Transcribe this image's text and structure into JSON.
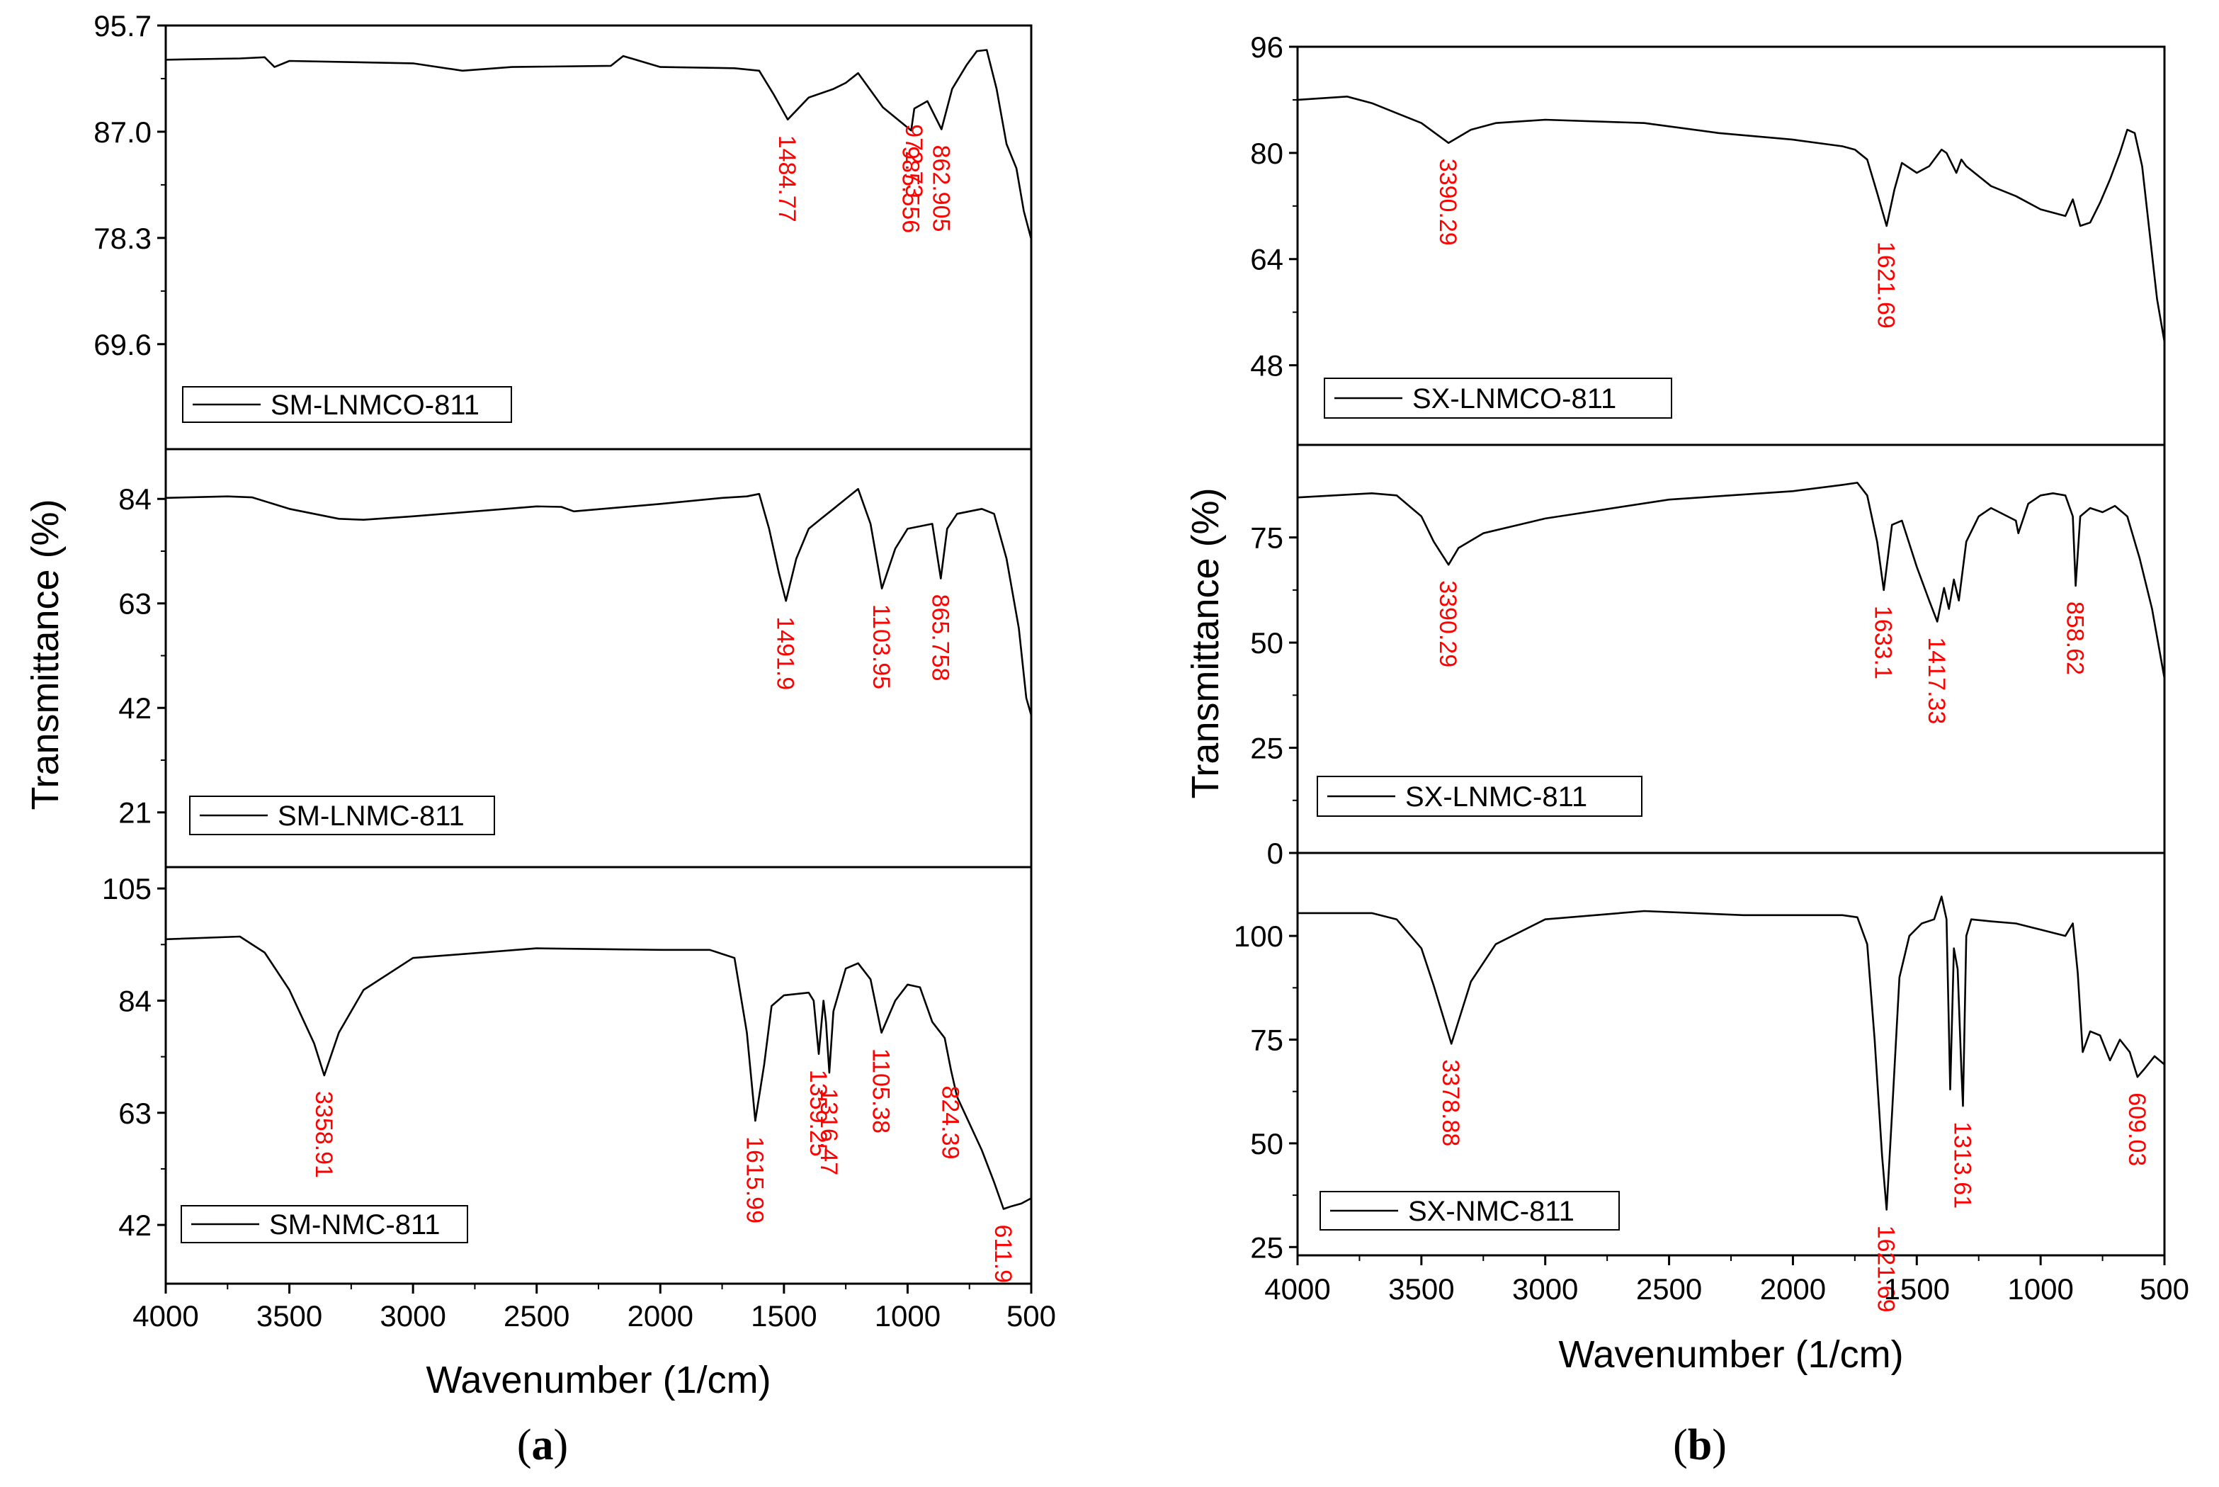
{
  "colors": {
    "line": "#000000",
    "annotation": "#ff0000",
    "background": "#ffffff"
  },
  "chart_data": [
    {
      "type": "line",
      "caption": {
        "open": "(",
        "letter": "a",
        "close": ")"
      },
      "xlabel": "Wavenumber (1/cm)",
      "ylabel": "Transmittance (%)",
      "xlim": [
        4000,
        500
      ],
      "x_ticks": [
        4000,
        3500,
        3000,
        2500,
        2000,
        1500,
        1000,
        500
      ],
      "x_tick_labels": [
        "4000",
        "3500",
        "3000",
        "2500",
        "2000",
        "1500",
        "1000",
        "500"
      ],
      "panels": [
        {
          "legend": "SM-LNMCO-811",
          "ylim": [
            61.0,
            95.7
          ],
          "y_ticks": [
            95.7,
            87.0,
            78.3,
            69.6
          ],
          "y_tick_labels": [
            "95.7",
            "87.0",
            "78.3",
            "69.6"
          ],
          "series": {
            "x": [
              4000,
              3700,
              3600,
              3560,
              3500,
              3000,
              2800,
              2600,
              2200,
              2150,
              2000,
              1700,
              1600,
              1540,
              1484.77,
              1400,
              1300,
              1250,
              1200,
              1100,
              985.556,
              972.73,
              920,
              862.905,
              820,
              760,
              720,
              680,
              640,
              600,
              560,
              530,
              500
            ],
            "y": [
              92.9,
              93.0,
              93.1,
              92.3,
              92.8,
              92.6,
              92.0,
              92.3,
              92.4,
              93.2,
              92.3,
              92.2,
              92.0,
              90.0,
              88.0,
              89.8,
              90.5,
              91.0,
              91.8,
              89.0,
              87.1,
              88.9,
              89.5,
              87.2,
              90.5,
              92.5,
              93.6,
              93.7,
              90.5,
              86.0,
              84.0,
              80.5,
              78.2
            ]
          },
          "peaks": [
            {
              "x": 1484.77,
              "y": 88.0,
              "label": "1484.77"
            },
            {
              "x": 985.556,
              "y": 87.1,
              "label": "985.556"
            },
            {
              "x": 972.73,
              "y": 88.9,
              "label": "972.73"
            },
            {
              "x": 862.905,
              "y": 87.2,
              "label": "862.905"
            }
          ]
        },
        {
          "legend": "SM-LNMC-811",
          "ylim": [
            10.0,
            94.0
          ],
          "y_ticks": [
            84,
            63,
            42,
            21
          ],
          "y_tick_labels": [
            "84",
            "63",
            "42",
            "21"
          ],
          "series": {
            "x": [
              4000,
              3750,
              3650,
              3500,
              3300,
              3200,
              3000,
              2500,
              2400,
              2350,
              2000,
              1750,
              1650,
              1600,
              1560,
              1520,
              1491.9,
              1450,
              1400,
              1350,
              1300,
              1250,
              1200,
              1150,
              1103.95,
              1050,
              1000,
              950,
              900,
              865.758,
              840,
              800,
              750,
              700,
              650,
              600,
              550,
              520,
              500
            ],
            "y": [
              84.2,
              84.5,
              84.3,
              82.0,
              80.0,
              79.8,
              80.5,
              82.5,
              82.4,
              81.5,
              83.0,
              84.2,
              84.5,
              85.0,
              78.0,
              69.0,
              63.5,
              72.0,
              78.0,
              80.0,
              82.0,
              84.0,
              86.0,
              79.0,
              66.0,
              74.0,
              78.0,
              78.5,
              79.0,
              68.0,
              78.0,
              81.0,
              81.5,
              82.0,
              81.0,
              72.0,
              58.0,
              44.0,
              40.5
            ]
          },
          "peaks": [
            {
              "x": 1491.9,
              "y": 63.5,
              "label": "1491.9"
            },
            {
              "x": 1103.95,
              "y": 66.0,
              "label": "1103.95"
            },
            {
              "x": 865.758,
              "y": 68.0,
              "label": "865.758"
            }
          ]
        },
        {
          "legend": "SM-NMC-811",
          "ylim": [
            31.0,
            109.0
          ],
          "y_ticks": [
            105,
            84,
            63,
            42
          ],
          "y_tick_labels": [
            "105",
            "84",
            "63",
            "42"
          ],
          "series": {
            "x": [
              4000,
              3700,
              3600,
              3500,
              3400,
              3358.91,
              3300,
              3200,
              3000,
              2500,
              2000,
              1800,
              1700,
              1650,
              1615.99,
              1580,
              1550,
              1500,
              1400,
              1380,
              1359.25,
              1340,
              1330,
              1316.47,
              1300,
              1250,
              1200,
              1150,
              1105.38,
              1050,
              1000,
              950,
              900,
              850,
              824.39,
              800,
              700,
              650,
              611.9,
              580,
              540,
              500
            ],
            "y": [
              95.5,
              96.0,
              93.0,
              86.0,
              76.0,
              70.0,
              78.0,
              86.0,
              92.0,
              93.8,
              93.5,
              93.5,
              92.0,
              78.0,
              61.5,
              72.0,
              83.0,
              85.0,
              85.5,
              84.0,
              74.0,
              84.0,
              80.0,
              70.5,
              82.0,
              90.0,
              91.0,
              88.0,
              78.0,
              84.0,
              87.0,
              86.5,
              80.0,
              77.0,
              71.0,
              66.0,
              56.0,
              50.0,
              45.0,
              45.5,
              46.0,
              47.0
            ]
          },
          "peaks": [
            {
              "x": 3358.91,
              "y": 70.0,
              "label": "3358.91"
            },
            {
              "x": 1615.99,
              "y": 61.5,
              "label": "1615.99"
            },
            {
              "x": 1359.25,
              "y": 74.0,
              "label": "1359.25"
            },
            {
              "x": 1316.47,
              "y": 70.5,
              "label": "1316.47"
            },
            {
              "x": 1105.38,
              "y": 78.0,
              "label": "1105.38"
            },
            {
              "x": 824.39,
              "y": 71.0,
              "label": "824.39"
            },
            {
              "x": 611.9,
              "y": 45.0,
              "label": "611.9"
            }
          ]
        }
      ]
    },
    {
      "type": "line",
      "caption": {
        "open": "(",
        "letter": "b",
        "close": ")"
      },
      "xlabel": "Wavenumber (1/cm)",
      "ylabel": "Transmittance (%)",
      "xlim": [
        4000,
        500
      ],
      "x_ticks": [
        4000,
        3500,
        3000,
        2500,
        2000,
        1500,
        1000,
        500
      ],
      "x_tick_labels": [
        "4000",
        "3500",
        "3000",
        "2500",
        "2000",
        "1500",
        "1000",
        "500"
      ],
      "panels": [
        {
          "legend": "SX-LNMCO-811",
          "ylim": [
            36.0,
            96.0
          ],
          "y_ticks": [
            96,
            80,
            64,
            48
          ],
          "y_tick_labels": [
            "96",
            "80",
            "64",
            "48"
          ],
          "series": {
            "x": [
              4000,
              3800,
              3700,
              3600,
              3500,
              3390.29,
              3300,
              3200,
              3000,
              2600,
              2300,
              2000,
              1800,
              1750,
              1700,
              1660,
              1621.69,
              1590,
              1560,
              1500,
              1450,
              1400,
              1380,
              1340,
              1320,
              1300,
              1200,
              1100,
              1000,
              900,
              870,
              840,
              800,
              760,
              720,
              680,
              650,
              620,
              590,
              560,
              530,
              500
            ],
            "y": [
              88.0,
              88.5,
              87.5,
              86.0,
              84.5,
              81.5,
              83.5,
              84.5,
              85.0,
              84.5,
              83.0,
              82.0,
              81.0,
              80.5,
              79.0,
              74.0,
              69.0,
              74.5,
              78.5,
              77.0,
              78.0,
              80.5,
              80.0,
              77.0,
              79.0,
              78.0,
              75.0,
              73.5,
              71.5,
              70.5,
              73.0,
              69.0,
              69.5,
              72.5,
              76.0,
              80.0,
              83.5,
              83.0,
              78.0,
              68.0,
              58.0,
              51.5
            ]
          },
          "peaks": [
            {
              "x": 3390.29,
              "y": 81.5,
              "label": "3390.29"
            },
            {
              "x": 1621.69,
              "y": 69.0,
              "label": "1621.69"
            }
          ]
        },
        {
          "legend": "SX-LNMC-811",
          "ylim": [
            0,
            97.0
          ],
          "y_ticks": [
            75,
            50,
            25,
            0
          ],
          "y_tick_labels": [
            "75",
            "50",
            "25",
            "0"
          ],
          "series": {
            "x": [
              4000,
              3700,
              3600,
              3500,
              3450,
              3390.29,
              3350,
              3250,
              3000,
              2500,
              2000,
              1800,
              1740,
              1700,
              1660,
              1633.1,
              1600,
              1560,
              1500,
              1450,
              1417.33,
              1390,
              1370,
              1350,
              1330,
              1300,
              1250,
              1200,
              1100,
              1090,
              1050,
              1000,
              950,
              900,
              870,
              858.62,
              840,
              800,
              750,
              700,
              650,
              600,
              550,
              500
            ],
            "y": [
              84.5,
              85.5,
              85.0,
              80.0,
              74.0,
              68.5,
              72.5,
              76.0,
              79.5,
              84.0,
              86.0,
              87.5,
              88.0,
              85.0,
              74.0,
              62.5,
              78.0,
              79.0,
              68.0,
              60.0,
              55.0,
              63.0,
              58.0,
              65.0,
              60.0,
              74.0,
              80.0,
              82.0,
              79.0,
              76.0,
              83.0,
              85.0,
              85.5,
              85.0,
              80.0,
              63.5,
              80.0,
              82.0,
              81.0,
              82.5,
              80.0,
              70.0,
              58.0,
              41.5
            ]
          },
          "peaks": [
            {
              "x": 3390.29,
              "y": 68.5,
              "label": "3390.29"
            },
            {
              "x": 1633.1,
              "y": 62.5,
              "label": "1633.1"
            },
            {
              "x": 1417.33,
              "y": 55.0,
              "label": "1417.33"
            },
            {
              "x": 858.62,
              "y": 63.5,
              "label": "858.62"
            }
          ]
        },
        {
          "legend": "SX-NMC-811",
          "ylim": [
            23.0,
            120.0
          ],
          "y_ticks": [
            100,
            75,
            50,
            25
          ],
          "y_tick_labels": [
            "100",
            "75",
            "50",
            "25"
          ],
          "series": {
            "x": [
              4000,
              3700,
              3600,
              3500,
              3450,
              3378.88,
              3300,
              3200,
              3000,
              2600,
              2200,
              1800,
              1740,
              1700,
              1670,
              1640,
              1621.69,
              1600,
              1570,
              1530,
              1480,
              1430,
              1400,
              1380,
              1365,
              1350,
              1335,
              1320,
              1313.61,
              1300,
              1280,
              1200,
              1100,
              1000,
              900,
              870,
              850,
              830,
              800,
              760,
              720,
              680,
              640,
              609.03,
              580,
              540,
              500
            ],
            "y": [
              105.5,
              105.5,
              104.0,
              97.0,
              88.0,
              74.0,
              89.0,
              98.0,
              104.0,
              106.0,
              105.0,
              105.0,
              104.5,
              98.0,
              75.0,
              47.0,
              34.0,
              57.0,
              90.0,
              100.0,
              103.0,
              104.0,
              109.5,
              104.0,
              63.0,
              97.0,
              92.0,
              68.0,
              59.0,
              100.0,
              104.0,
              103.5,
              103.0,
              101.5,
              100.0,
              103.0,
              91.0,
              72.0,
              77.0,
              76.0,
              70.0,
              75.0,
              72.0,
              66.0,
              68.0,
              71.0,
              69.0
            ]
          },
          "peaks": [
            {
              "x": 3378.88,
              "y": 74.0,
              "label": "3378.88"
            },
            {
              "x": 1621.69,
              "y": 34.0,
              "label": "1621.69"
            },
            {
              "x": 1313.61,
              "y": 59.0,
              "label": "1313.61"
            },
            {
              "x": 609.03,
              "y": 66.0,
              "label": "609.03"
            }
          ]
        }
      ]
    }
  ]
}
